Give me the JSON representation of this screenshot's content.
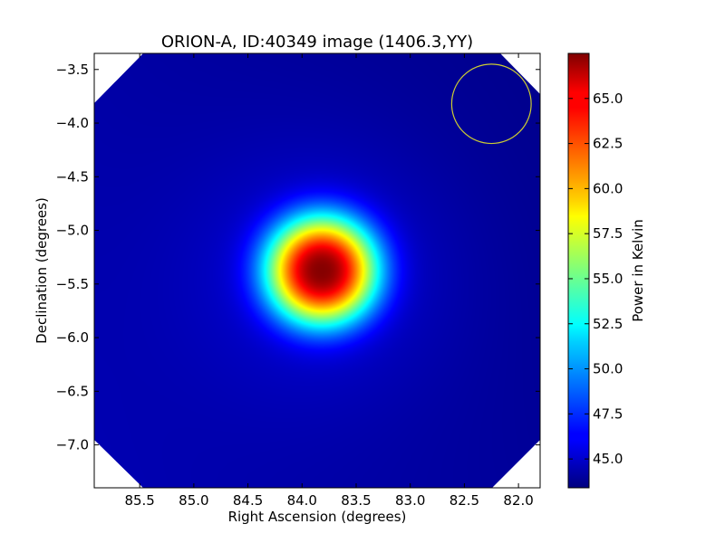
{
  "chart_data": {
    "type": "heatmap",
    "title": "ORION-A, ID:40349 image (1406.3,YY)",
    "xlabel": "Right Ascension (degrees)",
    "ylabel": "Declination (degrees)",
    "xlim": [
      85.92,
      81.8
    ],
    "ylim": [
      -7.4,
      -3.35
    ],
    "x_inverted": true,
    "grid": false,
    "colormap": "jet",
    "colorbar": {
      "label": "Power in Kelvin",
      "range": [
        43.4,
        67.5
      ],
      "ticks": [
        45.0,
        47.5,
        50.0,
        52.5,
        55.0,
        57.5,
        60.0,
        62.5,
        65.0
      ],
      "tick_labels": [
        "45.0",
        "47.5",
        "50.0",
        "52.5",
        "55.0",
        "57.5",
        "60.0",
        "62.5",
        "65.0"
      ]
    },
    "x_ticks": [
      85.5,
      85.0,
      84.5,
      84.0,
      83.5,
      83.0,
      82.5,
      82.0
    ],
    "x_tick_labels": [
      "85.5",
      "85.0",
      "84.5",
      "84.0",
      "83.5",
      "83.0",
      "82.5",
      "82.0"
    ],
    "y_ticks": [
      -3.5,
      -4.0,
      -4.5,
      -5.0,
      -5.5,
      -6.0,
      -6.5,
      -7.0
    ],
    "y_tick_labels": [
      "−3.5",
      "−4.0",
      "−4.5",
      "−5.0",
      "−5.5",
      "−6.0",
      "−6.5",
      "−7.0"
    ],
    "peak": {
      "ra": 83.82,
      "dec": -5.37,
      "value": 67.5,
      "sigma_deg": 0.38
    },
    "background_level": 44.3,
    "beam_circle": {
      "ra": 82.25,
      "dec": -3.82,
      "radius_deg": 0.37,
      "color": "#cccc33"
    },
    "masked_corner_color": "#ffffff"
  }
}
